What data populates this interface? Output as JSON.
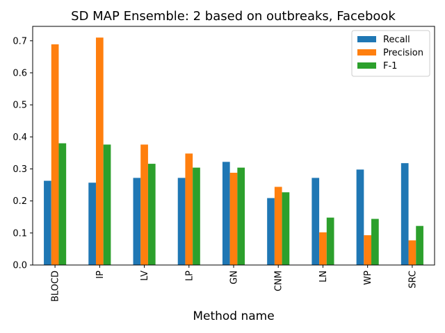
{
  "chart_data": {
    "type": "bar",
    "title": "SD MAP Ensemble: 2 based on outbreaks, Facebook",
    "xlabel": "Method name",
    "ylabel": "",
    "categories": [
      "BLOCD",
      "IP",
      "LV",
      "LP",
      "GN",
      "CNM",
      "LN",
      "WP",
      "SRC"
    ],
    "series": [
      {
        "name": "Recall",
        "color": "#1f77b4",
        "values": [
          0.263,
          0.257,
          0.272,
          0.272,
          0.322,
          0.209,
          0.272,
          0.298,
          0.318
        ]
      },
      {
        "name": "Precision",
        "color": "#ff7f0e",
        "values": [
          0.689,
          0.71,
          0.376,
          0.348,
          0.288,
          0.244,
          0.102,
          0.093,
          0.077
        ]
      },
      {
        "name": "F-1",
        "color": "#2ca02c",
        "values": [
          0.38,
          0.376,
          0.316,
          0.304,
          0.304,
          0.227,
          0.148,
          0.144,
          0.122
        ]
      }
    ],
    "ylim": [
      0,
      0.745
    ],
    "yticks": [
      0.0,
      0.1,
      0.2,
      0.3,
      0.4,
      0.5,
      0.6,
      0.7
    ],
    "ytick_labels": [
      "0.0",
      "0.1",
      "0.2",
      "0.3",
      "0.4",
      "0.5",
      "0.6",
      "0.7"
    ],
    "grid": false,
    "legend_position": "top-right"
  }
}
